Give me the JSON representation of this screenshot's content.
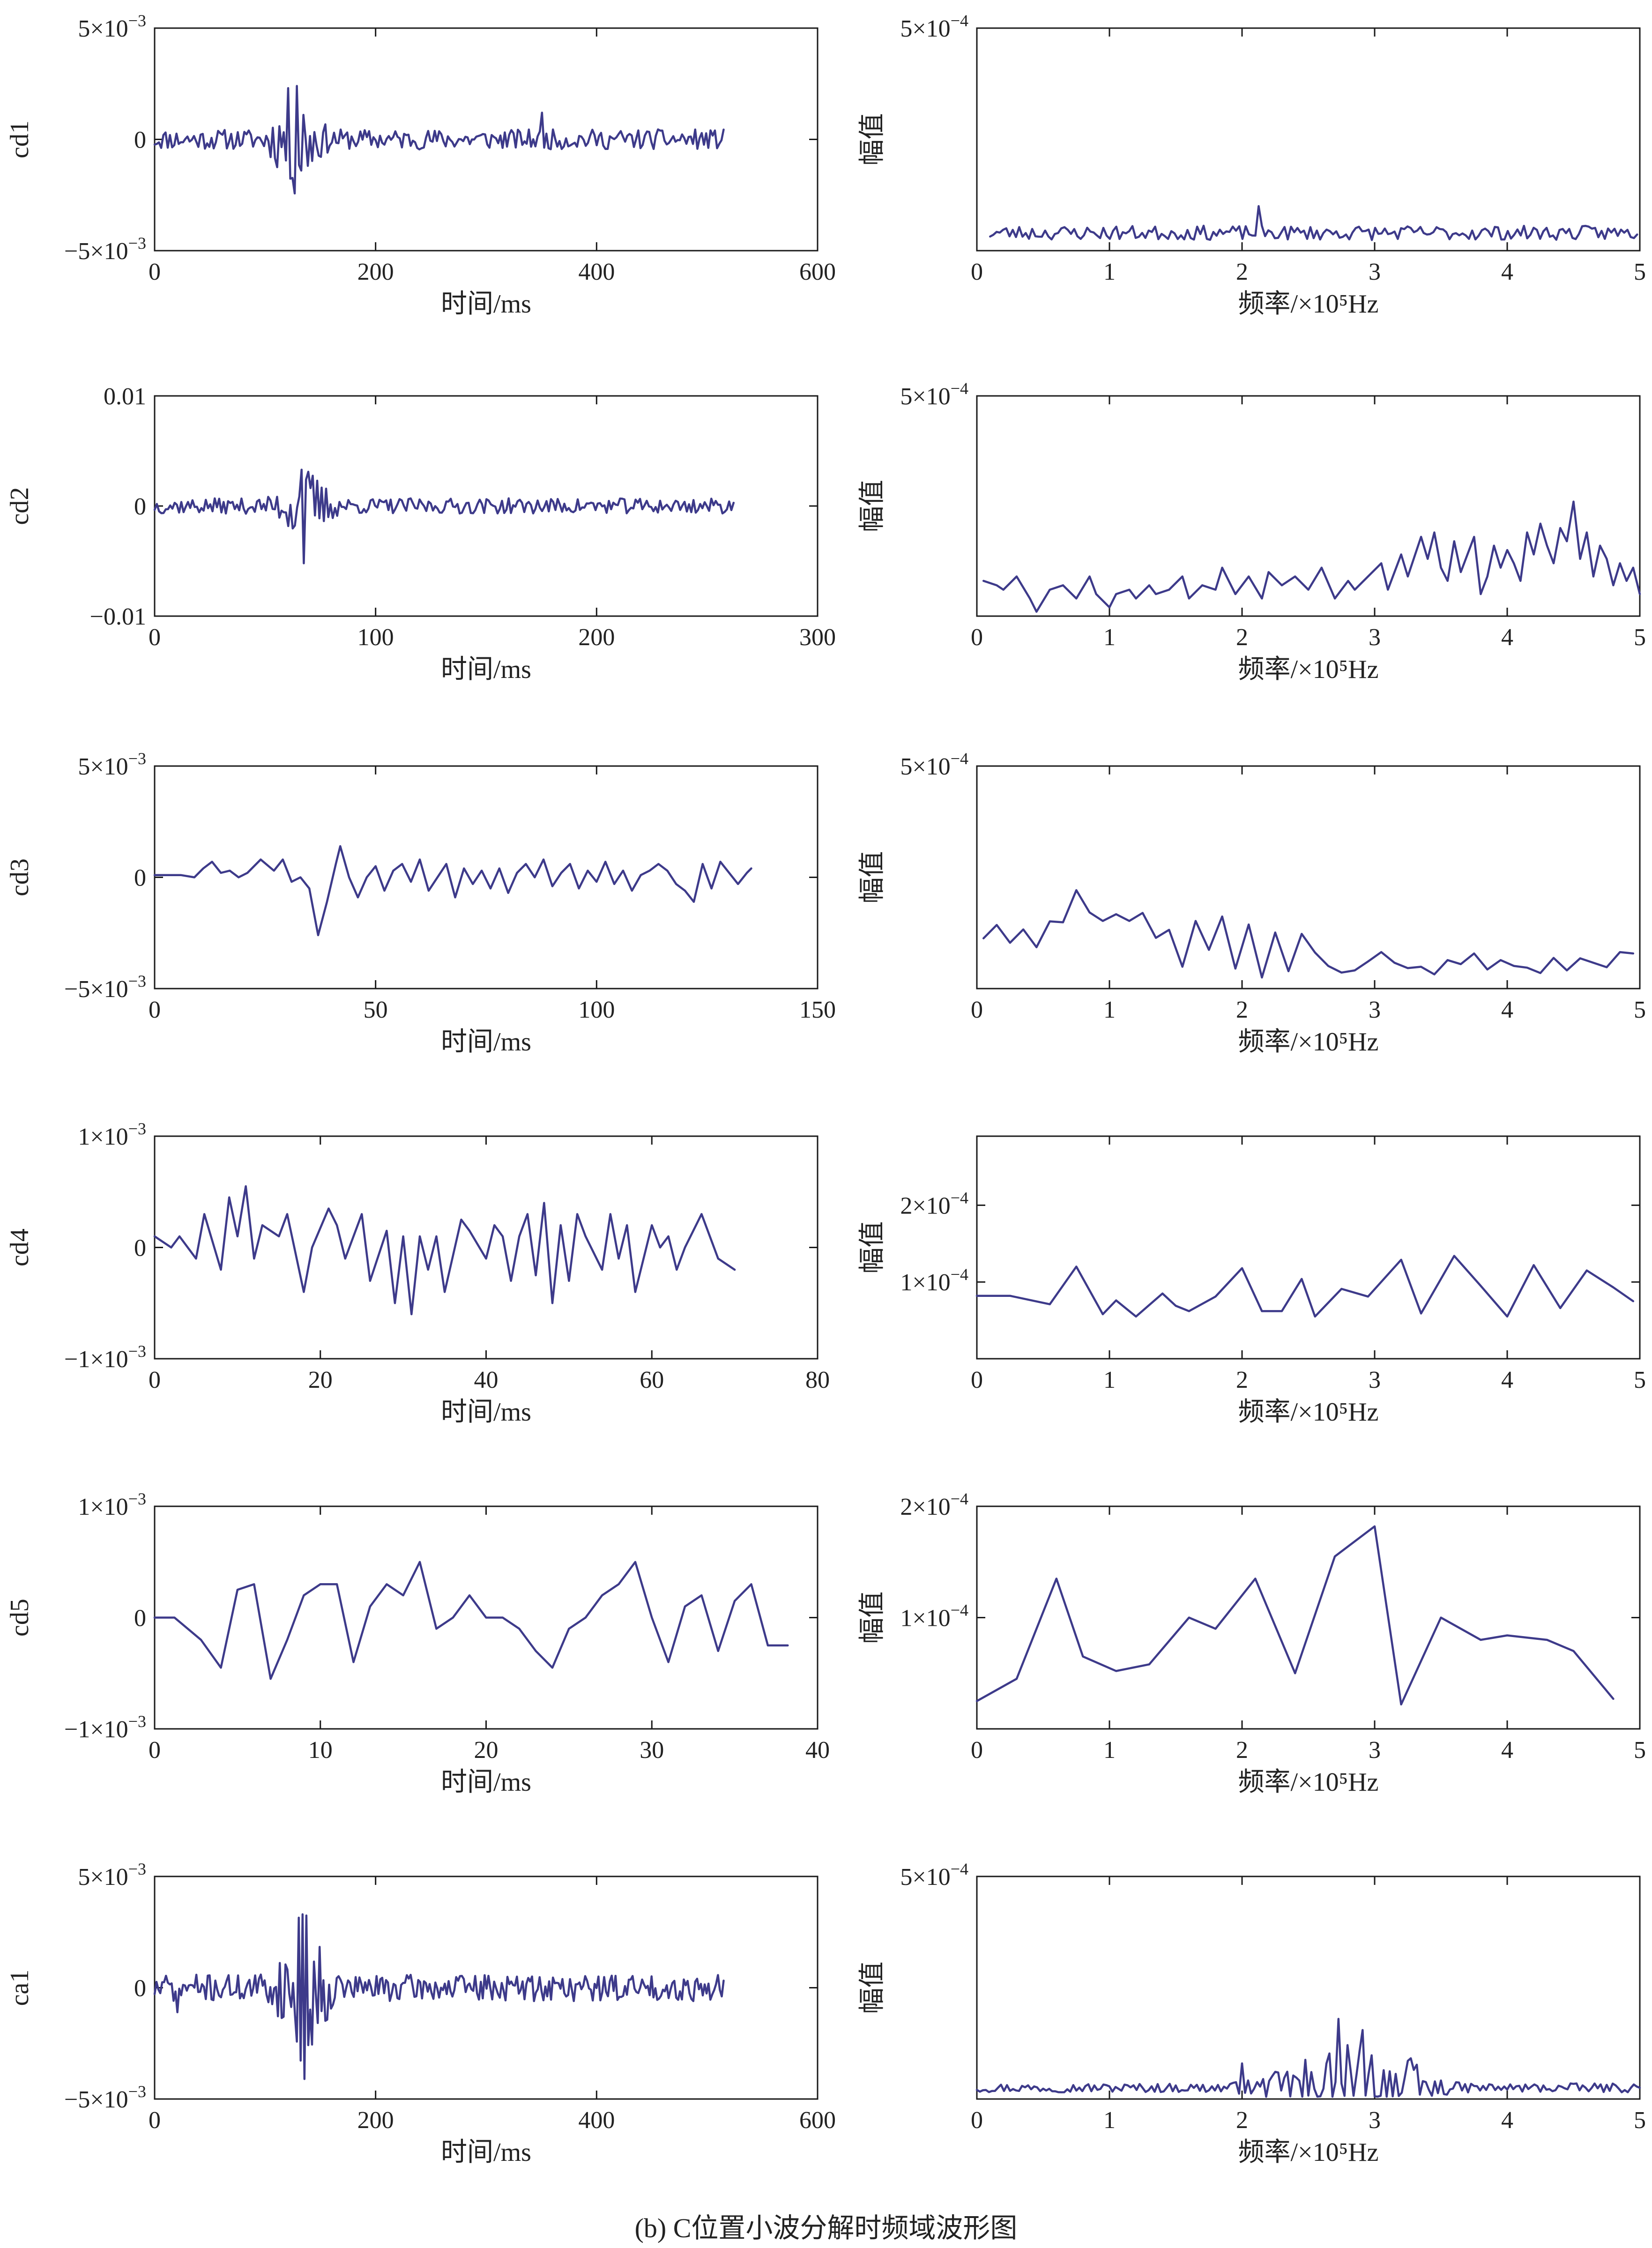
{
  "figure": {
    "caption": "(b) C位置小波分解时频域波形图"
  },
  "colors": {
    "line": "#3d3a8a",
    "axis": "#1a1a1a",
    "text": "#222222"
  },
  "chart_data": [
    {
      "type": "line",
      "name": "cd1-time",
      "ylabel": "cd1",
      "xlabel": "时间/ms",
      "xlim": [
        0,
        600
      ],
      "ylim": [
        -0.005,
        0.005
      ],
      "xticks": [
        "0",
        "200",
        "400",
        "600"
      ],
      "xtick_values": [
        0,
        200,
        400,
        600
      ],
      "yticks": [
        {
          "value": 0.005,
          "base": "5×10",
          "exp": "−3"
        },
        {
          "value": 0,
          "text": "0"
        },
        {
          "value": -0.005,
          "base": "−5×10",
          "exp": "−3"
        }
      ],
      "noise": {
        "seed": 11,
        "x_start": 0,
        "x_end": 515,
        "n": 260,
        "base": 0,
        "amp": 0.00045,
        "bursts": [
          {
            "x": 128,
            "width": 18,
            "amp": 0.0022
          }
        ],
        "spikes": [
          {
            "x": 128,
            "y": 0.0024
          },
          {
            "x": 132,
            "y": -0.0014
          },
          {
            "x": 350,
            "y": 0.0012
          }
        ]
      }
    },
    {
      "type": "line",
      "name": "cd1-freq",
      "ylabel": "幅值",
      "xlabel": "频率/×10⁵Hz",
      "xlim": [
        0,
        5
      ],
      "ylim": [
        0,
        0.0005
      ],
      "xticks": [
        "0",
        "1",
        "2",
        "3",
        "4",
        "5"
      ],
      "xtick_values": [
        0,
        1,
        2,
        3,
        4,
        5
      ],
      "yticks": [
        {
          "value": 0.0005,
          "base": "5×10",
          "exp": "−4"
        }
      ],
      "noise": {
        "seed": 23,
        "x_start": 0.1,
        "x_end": 4.98,
        "n": 200,
        "base": 4e-05,
        "amp": 1.6e-05,
        "floor": 5e-06,
        "bursts": [],
        "spikes": [
          {
            "x": 2.12,
            "y": 0.0001
          }
        ]
      }
    },
    {
      "type": "line",
      "name": "cd2-time",
      "ylabel": "cd2",
      "xlabel": "时间/ms",
      "xlim": [
        0,
        300
      ],
      "ylim": [
        -0.01,
        0.01
      ],
      "xticks": [
        "0",
        "100",
        "200",
        "300"
      ],
      "xtick_values": [
        0,
        100,
        200,
        300
      ],
      "yticks": [
        {
          "value": 0.01,
          "text": "0.01"
        },
        {
          "value": 0,
          "text": "0"
        },
        {
          "value": -0.01,
          "text": "−0.01"
        }
      ],
      "noise": {
        "seed": 37,
        "x_start": 0,
        "x_end": 262,
        "n": 260,
        "base": 0,
        "amp": 0.0007,
        "bursts": [
          {
            "x": 68,
            "width": 10,
            "amp": 0.0028
          }
        ],
        "spikes": [
          {
            "x": 67,
            "y": 0.0033
          },
          {
            "x": 68,
            "y": -0.0052
          }
        ]
      }
    },
    {
      "type": "line",
      "name": "cd2-freq",
      "ylabel": "幅值",
      "xlabel": "频率/×10⁵Hz",
      "xlim": [
        0,
        5
      ],
      "ylim": [
        0,
        0.0005
      ],
      "xticks": [
        "0",
        "1",
        "2",
        "3",
        "4",
        "5"
      ],
      "xtick_values": [
        0,
        1,
        2,
        3,
        4,
        5
      ],
      "yticks": [
        {
          "value": 0.0005,
          "base": "5×10",
          "exp": "−4"
        }
      ],
      "x": [
        0.05,
        0.15,
        0.2,
        0.3,
        0.4,
        0.45,
        0.55,
        0.65,
        0.75,
        0.85,
        0.9,
        1.0,
        1.05,
        1.15,
        1.2,
        1.3,
        1.35,
        1.45,
        1.55,
        1.6,
        1.7,
        1.8,
        1.85,
        1.95,
        2.05,
        2.15,
        2.2,
        2.3,
        2.4,
        2.5,
        2.6,
        2.7,
        2.8,
        2.85,
        2.95,
        3.05,
        3.1,
        3.2,
        3.25,
        3.35,
        3.4,
        3.45,
        3.5,
        3.55,
        3.6,
        3.65,
        3.7,
        3.75,
        3.8,
        3.85,
        3.9,
        3.95,
        4.0,
        4.05,
        4.1,
        4.15,
        4.2,
        4.25,
        4.3,
        4.35,
        4.4,
        4.45,
        4.5,
        4.55,
        4.6,
        4.65,
        4.7,
        4.75,
        4.8,
        4.85,
        4.9,
        4.95,
        5.0
      ],
      "values": [
        8e-05,
        7e-05,
        6e-05,
        9e-05,
        4e-05,
        1e-05,
        6e-05,
        7e-05,
        4e-05,
        9e-05,
        5e-05,
        2e-05,
        5e-05,
        6e-05,
        4e-05,
        7e-05,
        5e-05,
        6e-05,
        9e-05,
        4e-05,
        7e-05,
        6e-05,
        0.00011,
        5e-05,
        9e-05,
        4e-05,
        0.0001,
        7e-05,
        9e-05,
        6e-05,
        0.00011,
        4e-05,
        8e-05,
        6e-05,
        9e-05,
        0.00012,
        6e-05,
        0.00014,
        9e-05,
        0.00018,
        0.00013,
        0.00019,
        0.00011,
        8e-05,
        0.00017,
        0.0001,
        0.00014,
        0.00018,
        5e-05,
        9e-05,
        0.00016,
        0.00011,
        0.00015,
        0.00012,
        8e-05,
        0.00019,
        0.00014,
        0.00021,
        0.00016,
        0.00012,
        0.0002,
        0.00017,
        0.00026,
        0.00013,
        0.00019,
        9e-05,
        0.00016,
        0.00013,
        7e-05,
        0.00012,
        8e-05,
        0.00011,
        5e-05
      ]
    },
    {
      "type": "line",
      "name": "cd3-time",
      "ylabel": "cd3",
      "xlabel": "时间/ms",
      "xlim": [
        0,
        150
      ],
      "ylim": [
        -0.005,
        0.005
      ],
      "xticks": [
        "0",
        "50",
        "100",
        "150"
      ],
      "xtick_values": [
        0,
        50,
        100,
        150
      ],
      "yticks": [
        {
          "value": 0.005,
          "base": "5×10",
          "exp": "−3"
        },
        {
          "value": 0,
          "text": "0"
        },
        {
          "value": -0.005,
          "base": "−5×10",
          "exp": "−3"
        }
      ],
      "x": [
        0,
        3,
        6,
        9,
        11,
        13,
        15,
        17,
        19,
        21,
        24,
        27,
        29,
        31,
        33,
        35,
        37,
        39,
        41,
        42,
        44,
        46,
        48,
        50,
        52,
        54,
        56,
        58,
        60,
        62,
        64,
        66,
        68,
        70,
        72,
        74,
        76,
        78,
        80,
        82,
        84,
        86,
        88,
        90,
        92,
        94,
        96,
        98,
        100,
        102,
        104,
        106,
        108,
        110,
        112,
        114,
        116,
        118,
        120,
        122,
        124,
        126,
        128,
        130,
        132,
        134,
        135
      ],
      "values": [
        0.0001,
        0.0001,
        0.0001,
        0,
        0.0004,
        0.0007,
        0.0002,
        0.0003,
        0,
        0.0002,
        0.0008,
        0.0003,
        0.0008,
        -0.0002,
        0,
        -0.0005,
        -0.0026,
        -0.0011,
        0.0006,
        0.0014,
        0,
        -0.0009,
        0,
        0.0005,
        -0.0006,
        0.0003,
        0.0006,
        -0.0002,
        0.0008,
        -0.0006,
        0,
        0.0006,
        -0.0009,
        0.0004,
        -0.0003,
        0.0003,
        -0.0005,
        0.0004,
        -0.0007,
        0.0002,
        0.0006,
        0,
        0.0008,
        -0.0004,
        0.0002,
        0.0006,
        -0.0005,
        0.0003,
        -0.0002,
        0.0007,
        -0.0003,
        0.0003,
        -0.0006,
        0.0001,
        0.0003,
        0.0006,
        0.0003,
        -0.0003,
        -0.0006,
        -0.0011,
        0.0006,
        -0.0005,
        0.0007,
        0.0002,
        -0.0003,
        0.0002,
        0.0004
      ]
    },
    {
      "type": "line",
      "name": "cd3-freq",
      "ylabel": "幅值",
      "xlabel": "频率/×10⁵Hz",
      "xlim": [
        0,
        5
      ],
      "ylim": [
        0,
        0.0005
      ],
      "xticks": [
        "0",
        "1",
        "2",
        "3",
        "4",
        "5"
      ],
      "xtick_values": [
        0,
        1,
        2,
        3,
        4,
        5
      ],
      "yticks": [
        {
          "value": 0.0005,
          "base": "5×10",
          "exp": "−4"
        }
      ],
      "x": [
        0.05,
        0.15,
        0.25,
        0.35,
        0.45,
        0.55,
        0.65,
        0.75,
        0.85,
        0.95,
        1.05,
        1.15,
        1.25,
        1.35,
        1.45,
        1.55,
        1.65,
        1.75,
        1.85,
        1.95,
        2.05,
        2.15,
        2.25,
        2.35,
        2.45,
        2.55,
        2.65,
        2.75,
        2.85,
        2.95,
        3.05,
        3.15,
        3.25,
        3.35,
        3.45,
        3.55,
        3.65,
        3.75,
        3.85,
        3.95,
        4.05,
        4.15,
        4.25,
        4.35,
        4.45,
        4.55,
        4.65,
        4.75,
        4.85,
        4.95
      ],
      "values": [
        0.000113,
        0.000143,
        0.000103,
        0.000133,
        9.3e-05,
        0.000151,
        0.000149,
        0.000221,
        0.000171,
        0.000152,
        0.000167,
        0.000152,
        0.00017,
        0.000114,
        0.000132,
        4.9e-05,
        0.000152,
        8.7e-05,
        0.000162,
        4.5e-05,
        0.000144,
        2.5e-05,
        0.000126,
        3.9e-05,
        0.000123,
        8.1e-05,
        5.1e-05,
        3.6e-05,
        4.1e-05,
        6.1e-05,
        8.2e-05,
        5.8e-05,
        4.6e-05,
        4.9e-05,
        3.2e-05,
        6.4e-05,
        5.5e-05,
        7.9e-05,
        4.3e-05,
        6.4e-05,
        5.1e-05,
        4.7e-05,
        3.5e-05,
        6.9e-05,
        4.1e-05,
        6.8e-05,
        5.8e-05,
        4.8e-05,
        8.2e-05,
        7.9e-05
      ]
    },
    {
      "type": "line",
      "name": "cd4-time",
      "ylabel": "cd4",
      "xlabel": "时间/ms",
      "xlim": [
        0,
        80
      ],
      "ylim": [
        -0.001,
        0.001
      ],
      "xticks": [
        "0",
        "20",
        "40",
        "60",
        "80"
      ],
      "xtick_values": [
        0,
        20,
        40,
        60,
        80
      ],
      "yticks": [
        {
          "value": 0.001,
          "base": "1×10",
          "exp": "−3"
        },
        {
          "value": 0,
          "text": "0"
        },
        {
          "value": -0.001,
          "base": "−1×10",
          "exp": "−3"
        }
      ],
      "x": [
        0,
        2,
        3,
        5,
        6,
        8,
        9,
        10,
        11,
        12,
        13,
        15,
        16,
        18,
        19,
        21,
        22,
        23,
        25,
        26,
        28,
        29,
        30,
        31,
        32,
        33,
        34,
        35,
        37,
        38,
        40,
        41,
        42,
        43,
        44,
        45,
        46,
        47,
        48,
        49,
        50,
        51,
        52,
        54,
        55,
        56,
        57,
        58,
        60,
        61,
        62,
        63,
        64,
        66,
        67,
        68,
        70
      ],
      "values": [
        0.0001,
        0,
        0.0001,
        -0.0001,
        0.0003,
        -0.0002,
        0.00045,
        0.0001,
        0.00055,
        -0.0001,
        0.0002,
        0.0001,
        0.0003,
        -0.0004,
        0,
        0.00035,
        0.0002,
        -0.0001,
        0.0003,
        -0.0003,
        0.00015,
        -0.0005,
        0.0001,
        -0.0006,
        0.0001,
        -0.0002,
        0.0001,
        -0.0004,
        0.00025,
        0.00015,
        -0.0001,
        0.0002,
        0.0001,
        -0.0003,
        0.0001,
        0.0003,
        -0.00025,
        0.0004,
        -0.0005,
        0.0002,
        -0.0003,
        0.0003,
        0.0001,
        -0.0002,
        0.0003,
        -0.0001,
        0.0002,
        -0.0004,
        0.0002,
        0,
        0.0001,
        -0.0002,
        0,
        0.0003,
        0.0001,
        -0.0001,
        -0.0002
      ]
    },
    {
      "type": "line",
      "name": "cd4-freq",
      "ylabel": "幅值",
      "xlabel": "频率/×10⁵Hz",
      "xlim": [
        0,
        5
      ],
      "ylim": [
        0,
        0.00029
      ],
      "xticks": [
        "0",
        "1",
        "2",
        "3",
        "4",
        "5"
      ],
      "xtick_values": [
        0,
        1,
        2,
        3,
        4,
        5
      ],
      "yticks": [
        {
          "value": 0.0002,
          "base": "2×10",
          "exp": "−4"
        },
        {
          "value": 0.0001,
          "base": "1×10",
          "exp": "−4"
        }
      ],
      "x": [
        0,
        0.25,
        0.55,
        0.75,
        0.95,
        1.05,
        1.2,
        1.4,
        1.5,
        1.6,
        1.8,
        2.0,
        2.15,
        2.3,
        2.45,
        2.55,
        2.75,
        2.95,
        3.2,
        3.35,
        3.6,
        3.8,
        4.0,
        4.2,
        4.4,
        4.6,
        4.8,
        4.95
      ],
      "values": [
        8.2e-05,
        8.2e-05,
        7.1e-05,
        0.00012,
        5.8e-05,
        7.6e-05,
        5.5e-05,
        8.5e-05,
        6.9e-05,
        6.2e-05,
        8.1e-05,
        0.000118,
        6.2e-05,
        6.2e-05,
        0.000104,
        5.5e-05,
        9.1e-05,
        8.1e-05,
        0.000129,
        5.9e-05,
        0.000134,
        9.5e-05,
        5.5e-05,
        0.000122,
        6.6e-05,
        0.000115,
        9.3e-05,
        7.5e-05
      ]
    },
    {
      "type": "line",
      "name": "cd5-time",
      "ylabel": "cd5",
      "xlabel": "时间/ms",
      "xlim": [
        0,
        40
      ],
      "ylim": [
        -0.001,
        0.001
      ],
      "xticks": [
        "0",
        "10",
        "20",
        "30",
        "40"
      ],
      "xtick_values": [
        0,
        10,
        20,
        30,
        40
      ],
      "yticks": [
        {
          "value": 0.001,
          "base": "1×10",
          "exp": "−3"
        },
        {
          "value": 0,
          "text": "0"
        },
        {
          "value": -0.001,
          "base": "−1×10",
          "exp": "−3"
        }
      ],
      "x": [
        0,
        1.2,
        2.8,
        4,
        5,
        6,
        7,
        8,
        9,
        10,
        11,
        12,
        13,
        14,
        15,
        16,
        17,
        18,
        19,
        20,
        21,
        22,
        23,
        24,
        25,
        26,
        27,
        28,
        29,
        30,
        31,
        32,
        33,
        34,
        35,
        36,
        37,
        38.2
      ],
      "values": [
        0,
        0,
        -0.0002,
        -0.00045,
        0.00025,
        0.0003,
        -0.00055,
        -0.0002,
        0.0002,
        0.0003,
        0.0003,
        -0.0004,
        0.0001,
        0.0003,
        0.0002,
        0.0005,
        -0.0001,
        0,
        0.0002,
        0,
        0,
        -0.0001,
        -0.0003,
        -0.00045,
        -0.0001,
        0,
        0.0002,
        0.0003,
        0.0005,
        0,
        -0.0004,
        0.0001,
        0.0002,
        -0.0003,
        0.00015,
        0.0003,
        -0.00025,
        -0.00025
      ]
    },
    {
      "type": "line",
      "name": "cd5-freq",
      "ylabel": "幅值",
      "xlabel": "频率/×10⁵Hz",
      "xlim": [
        0,
        5
      ],
      "ylim": [
        0,
        0.0002
      ],
      "xticks": [
        "0",
        "1",
        "2",
        "3",
        "4",
        "5"
      ],
      "xtick_values": [
        0,
        1,
        2,
        3,
        4,
        5
      ],
      "yticks": [
        {
          "value": 0.0002,
          "base": "2×10",
          "exp": "−4"
        },
        {
          "value": 0.0001,
          "base": "1×10",
          "exp": "−4"
        }
      ],
      "x": [
        0,
        0.3,
        0.6,
        0.8,
        1.05,
        1.3,
        1.6,
        1.8,
        2.1,
        2.4,
        2.7,
        3.0,
        3.2,
        3.5,
        3.8,
        4.0,
        4.3,
        4.5,
        4.8
      ],
      "values": [
        2.5e-05,
        4.5e-05,
        0.000135,
        6.5e-05,
        5.2e-05,
        5.8e-05,
        0.0001,
        9e-05,
        0.000135,
        5e-05,
        0.000155,
        0.000182,
        2.2e-05,
        0.0001,
        8e-05,
        8.4e-05,
        8e-05,
        7e-05,
        2.7e-05
      ]
    },
    {
      "type": "line",
      "name": "ca1-time",
      "ylabel": "ca1",
      "xlabel": "时间/ms",
      "xlim": [
        0,
        600
      ],
      "ylim": [
        -0.005,
        0.005
      ],
      "xticks": [
        "0",
        "200",
        "400",
        "600"
      ],
      "xtick_values": [
        0,
        200,
        400,
        600
      ],
      "yticks": [
        {
          "value": 0.005,
          "base": "5×10",
          "exp": "−3"
        },
        {
          "value": 0,
          "text": "0"
        },
        {
          "value": -0.005,
          "base": "−5×10",
          "exp": "−3"
        }
      ],
      "noise": {
        "seed": 71,
        "x_start": 0,
        "x_end": 515,
        "n": 300,
        "base": 0,
        "amp": 0.0006,
        "bursts": [
          {
            "x": 135,
            "width": 20,
            "amp": 0.0028
          }
        ],
        "spikes": [
          {
            "x": 134,
            "y": 0.0033
          },
          {
            "x": 136,
            "y": -0.0041
          },
          {
            "x": 20,
            "y": -0.0011
          }
        ]
      }
    },
    {
      "type": "line",
      "name": "ca1-freq",
      "ylabel": "幅值",
      "xlabel": "频率/×10⁵Hz",
      "xlim": [
        0,
        5
      ],
      "ylim": [
        0,
        0.0005
      ],
      "xticks": [
        "0",
        "1",
        "2",
        "3",
        "4",
        "5"
      ],
      "xtick_values": [
        0,
        1,
        2,
        3,
        4,
        5
      ],
      "yticks": [
        {
          "value": 0.0005,
          "base": "5×10",
          "exp": "−4"
        }
      ],
      "noise": {
        "seed": 97,
        "x_start": 0.0,
        "x_end": 5.0,
        "n": 220,
        "base": 2.5e-05,
        "amp": 1e-05,
        "floor": 5e-06,
        "bursts": [
          {
            "x": 2.75,
            "width": 0.45,
            "amp": 9e-05
          },
          {
            "x": 3.2,
            "width": 0.2,
            "amp": 4e-05
          }
        ],
        "spikes": [
          {
            "x": 2.72,
            "y": 0.00018
          },
          {
            "x": 2.9,
            "y": 0.000155
          },
          {
            "x": 2.0,
            "y": 8e-05
          }
        ]
      }
    }
  ]
}
